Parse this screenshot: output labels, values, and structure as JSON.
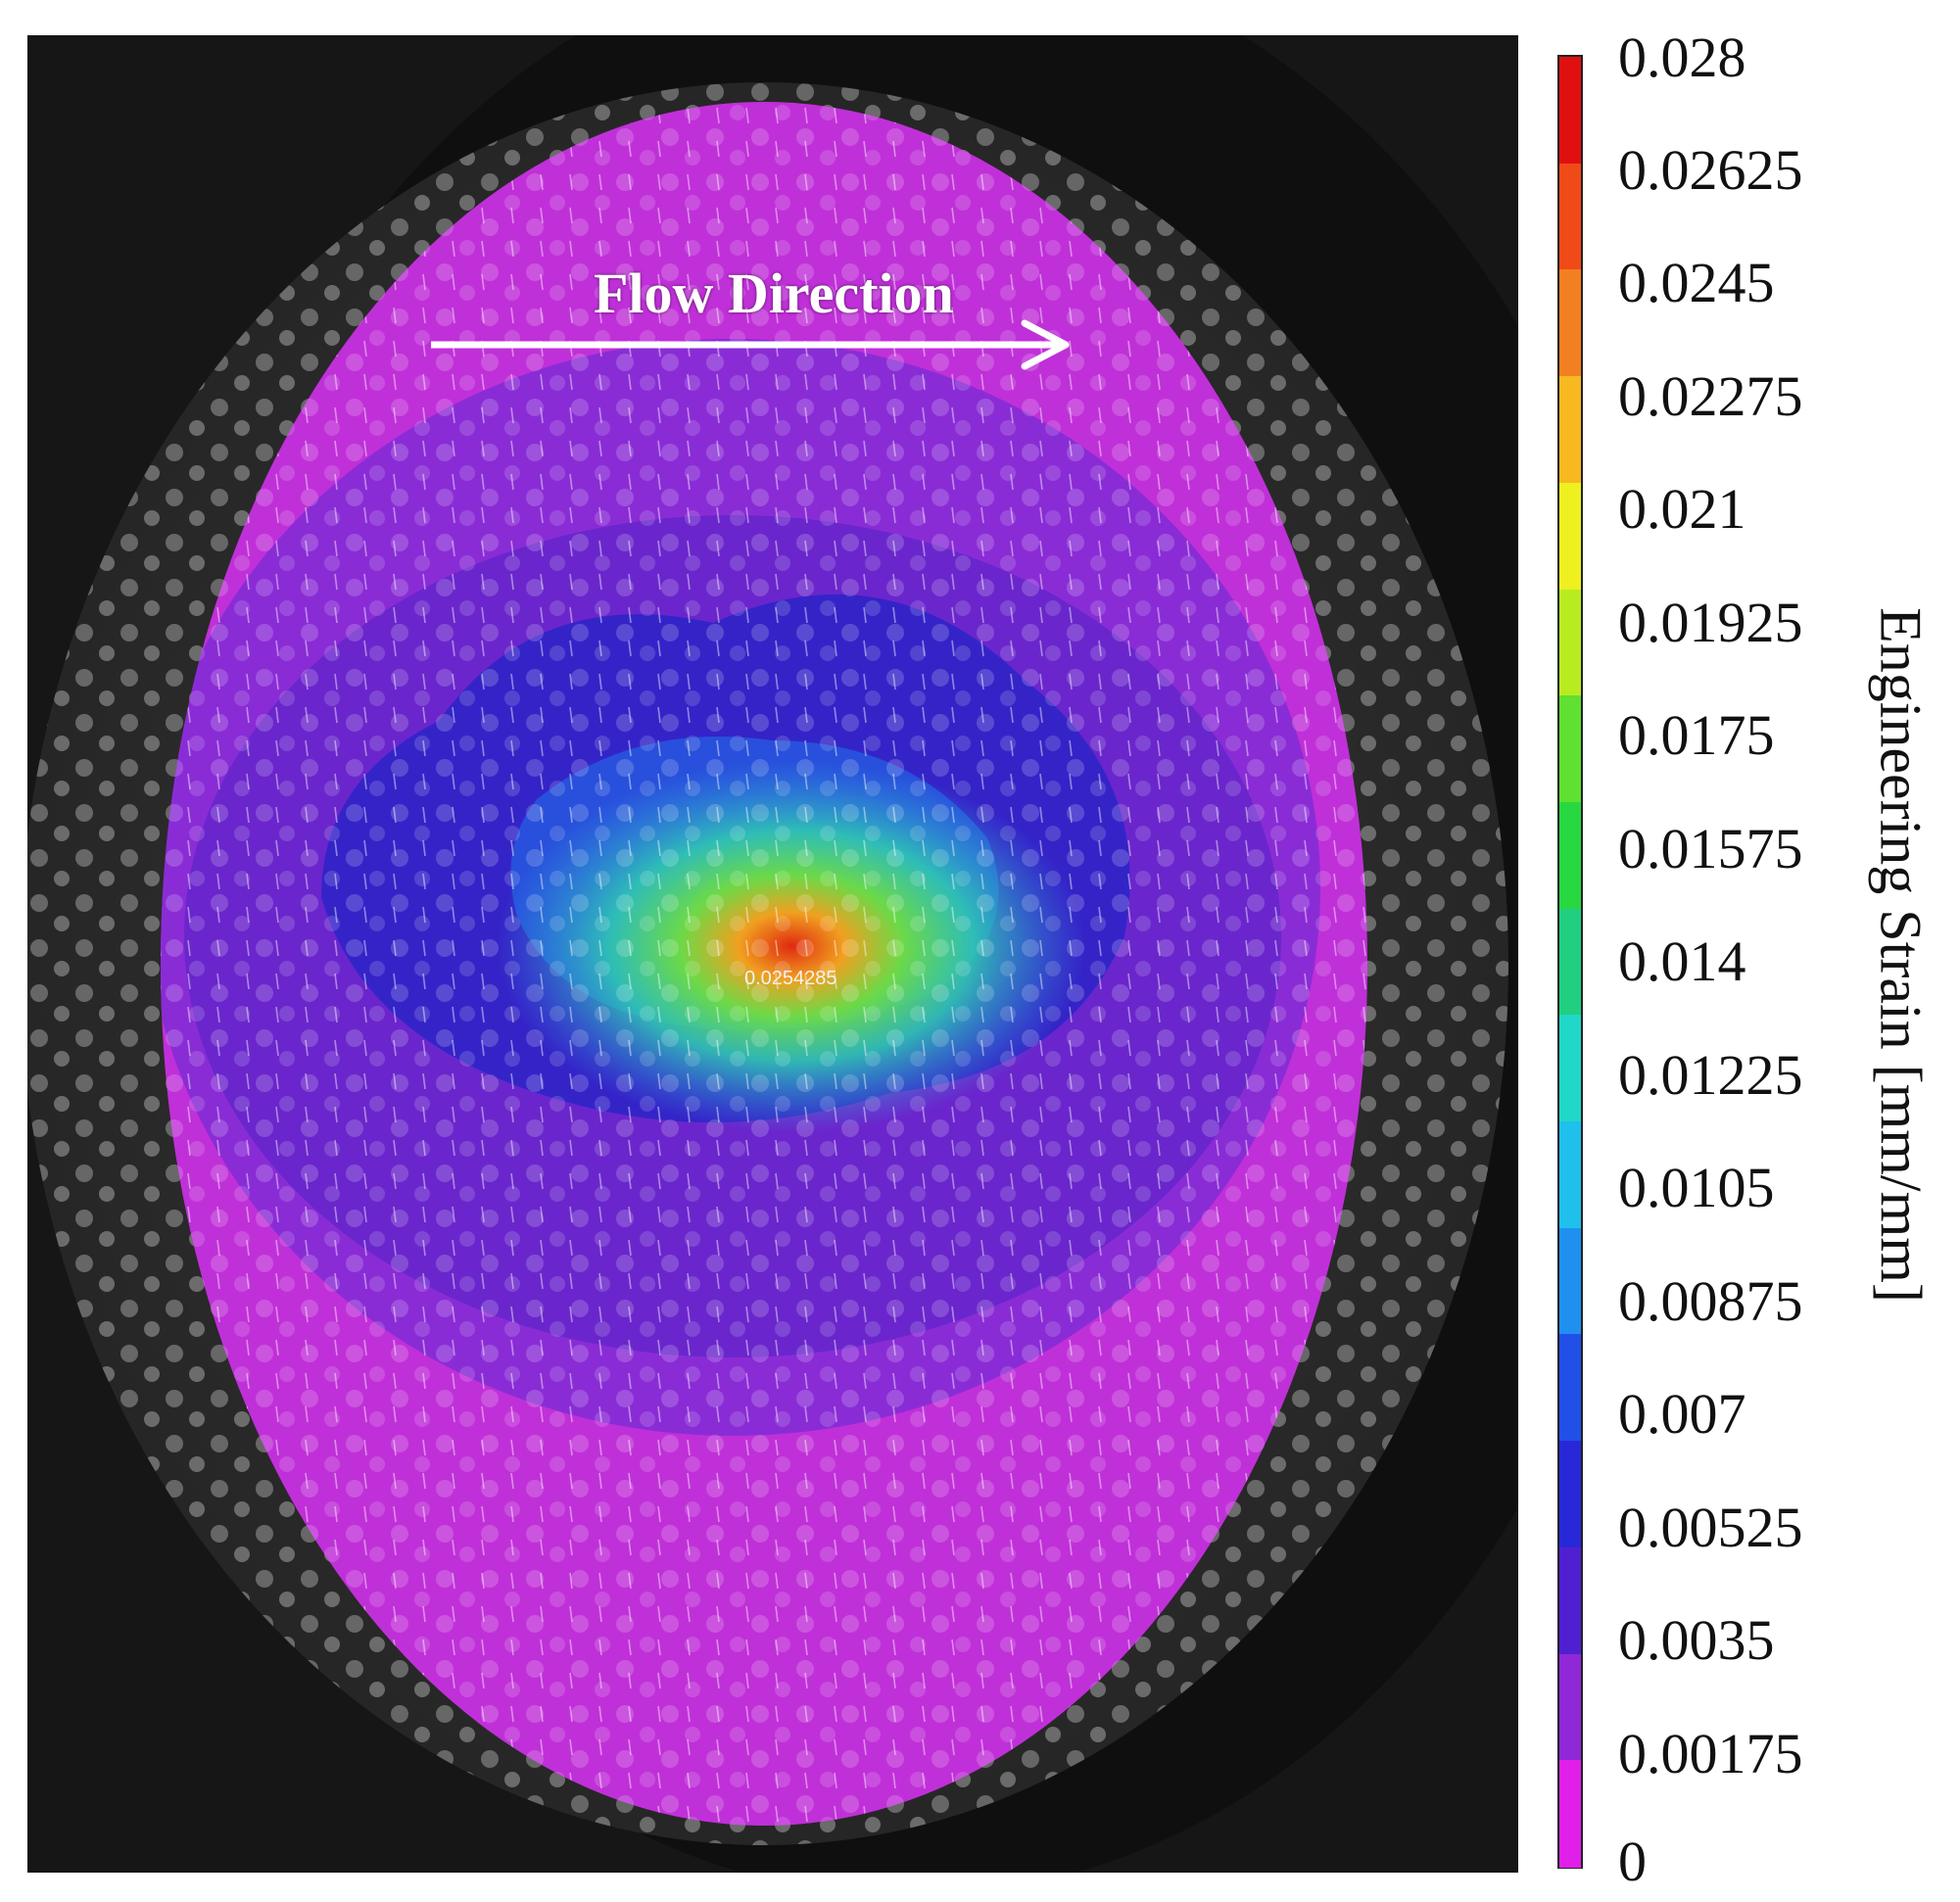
{
  "figure": {
    "annotation": "Flow Direction",
    "peak_value_label": "0.0254285"
  },
  "colorbar": {
    "title": "Engineering Strain [mm/mm]",
    "ticks": [
      "0.028",
      "0.02625",
      "0.0245",
      "0.02275",
      "0.021",
      "0.01925",
      "0.0175",
      "0.01575",
      "0.014",
      "0.01225",
      "0.0105",
      "0.00875",
      "0.007",
      "0.00525",
      "0.0035",
      "0.00175",
      "0"
    ],
    "colors": [
      "#e01010",
      "#f04a18",
      "#f38020",
      "#f7b820",
      "#eef020",
      "#b8ec20",
      "#60e030",
      "#28d840",
      "#20d080",
      "#20d8c8",
      "#20c0ec",
      "#2090f0",
      "#2050e8",
      "#2828d8",
      "#5020d0",
      "#9028d8",
      "#e020e8"
    ]
  }
}
